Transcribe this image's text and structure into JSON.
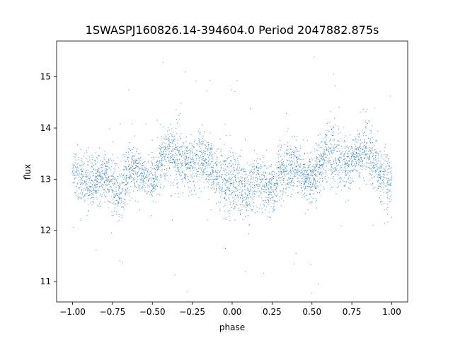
{
  "chart_data": {
    "type": "scatter",
    "title": "1SWASPJ160826.14-394604.0 Period 2047882.875s",
    "xlabel": "phase",
    "ylabel": "flux",
    "xlim": [
      -1.1,
      1.1
    ],
    "ylim": [
      10.6,
      15.7
    ],
    "xticks": [
      -1.0,
      -0.75,
      -0.5,
      -0.25,
      0.0,
      0.25,
      0.5,
      0.75,
      1.0
    ],
    "xtick_labels": [
      "−1.00",
      "−0.75",
      "−0.50",
      "−0.25",
      "0.00",
      "0.25",
      "0.50",
      "0.75",
      "1.00"
    ],
    "yticks": [
      11,
      12,
      13,
      14,
      15
    ],
    "ytick_labels": [
      "11",
      "12",
      "13",
      "14",
      "15"
    ],
    "grid": false,
    "marker_color": "#1f77b4",
    "series": [
      {
        "profile_x": [
          -1.0,
          -0.95,
          -0.9,
          -0.85,
          -0.8,
          -0.75,
          -0.7,
          -0.65,
          -0.6,
          -0.55,
          -0.5,
          -0.45,
          -0.4,
          -0.35,
          -0.3,
          -0.25,
          -0.2,
          -0.15,
          -0.1,
          -0.05,
          0.0,
          0.05,
          0.1,
          0.15,
          0.2,
          0.25,
          0.3,
          0.35,
          0.4,
          0.45,
          0.5,
          0.55,
          0.6,
          0.65,
          0.7,
          0.75,
          0.8,
          0.85,
          0.9,
          0.95,
          1.0
        ],
        "profile_median_flux": [
          13.1,
          13.0,
          12.9,
          13.0,
          13.1,
          12.85,
          12.7,
          13.1,
          13.2,
          13.0,
          13.0,
          13.3,
          13.6,
          13.4,
          13.3,
          13.25,
          13.4,
          13.35,
          13.1,
          13.0,
          12.95,
          12.9,
          12.75,
          13.0,
          12.95,
          12.75,
          13.1,
          13.2,
          13.3,
          13.0,
          13.0,
          13.25,
          13.6,
          13.4,
          13.3,
          13.3,
          13.55,
          13.6,
          13.2,
          13.0,
          12.85
        ],
        "profile_spread": [
          0.35,
          0.45,
          0.55,
          0.45,
          0.4,
          0.5,
          0.45,
          0.45,
          0.4,
          0.35,
          0.4,
          0.45,
          0.6,
          0.5,
          0.45,
          0.45,
          0.5,
          0.45,
          0.45,
          0.55,
          0.55,
          0.5,
          0.5,
          0.45,
          0.45,
          0.45,
          0.5,
          0.55,
          0.45,
          0.4,
          0.4,
          0.45,
          0.55,
          0.55,
          0.5,
          0.45,
          0.5,
          0.55,
          0.45,
          0.5,
          0.5
        ],
        "n_points": 4200
      }
    ]
  }
}
